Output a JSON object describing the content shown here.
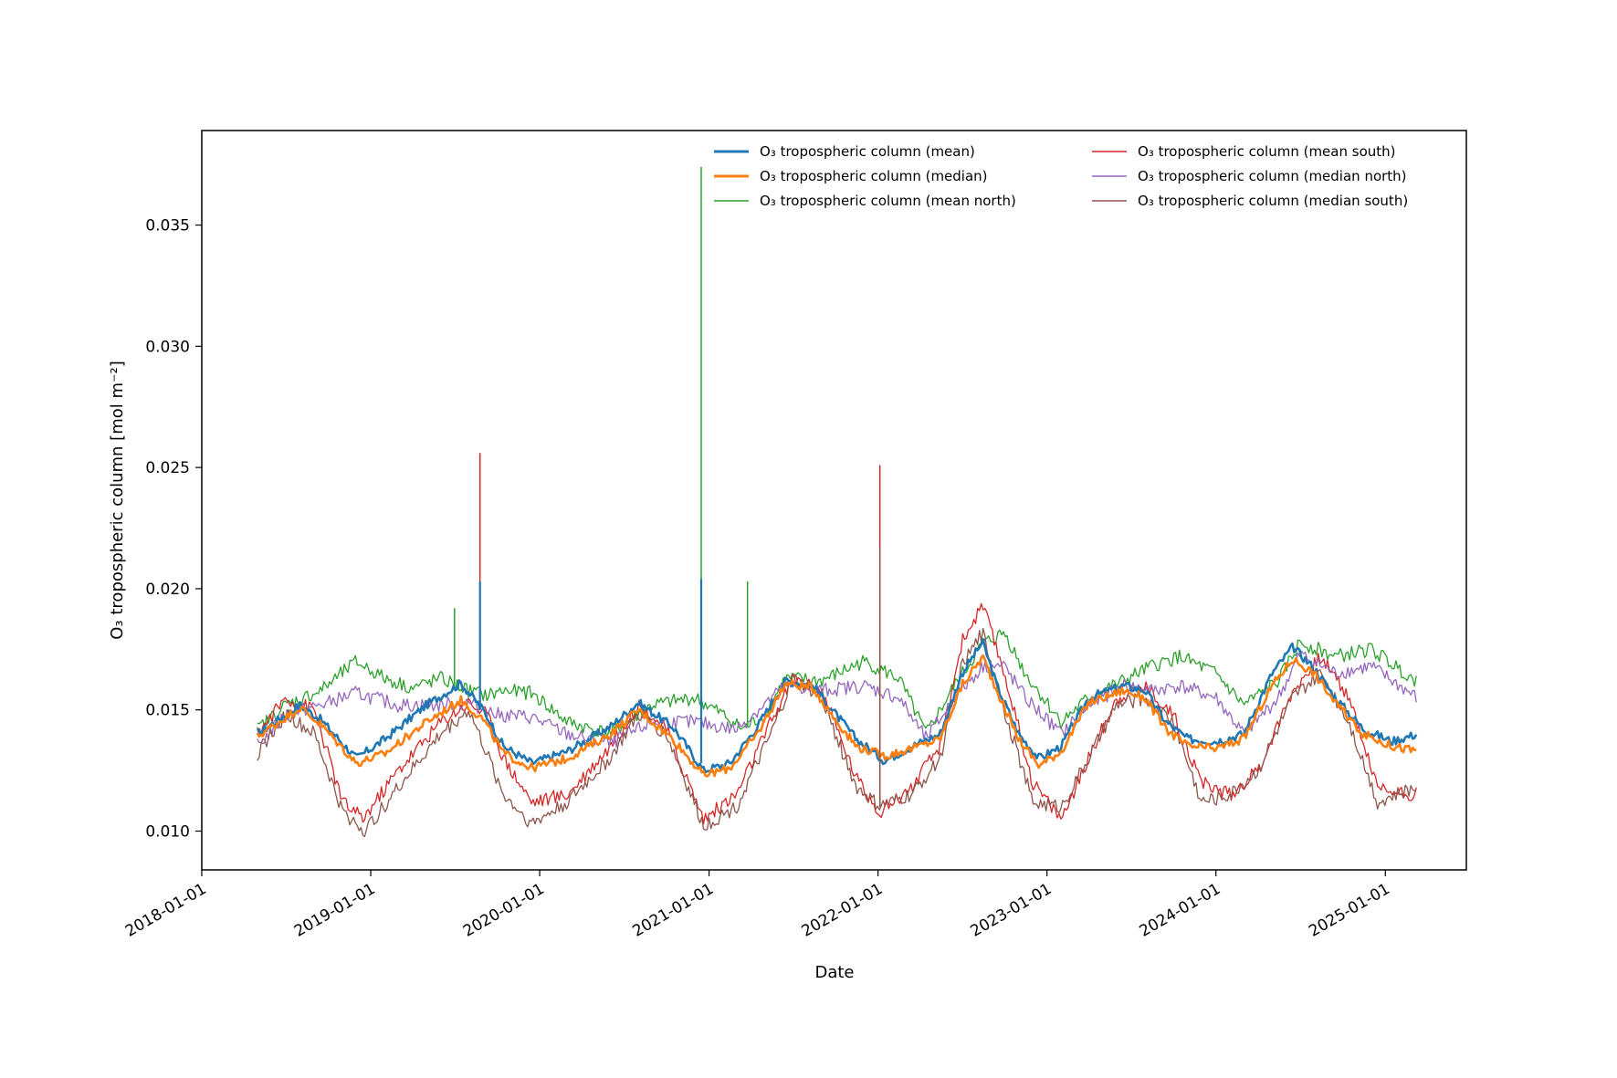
{
  "chart_data": {
    "type": "line",
    "title": "",
    "xlabel": "Date",
    "ylabel": "O₃ tropospheric column [mol m⁻²]",
    "x_range": [
      "2018-01-01",
      "2025-06-25"
    ],
    "ylim": [
      0.0084,
      0.0389
    ],
    "grid": false,
    "legend_position": "upper-right",
    "legend_columns": 2,
    "x_ticks": [
      "2018-01-01",
      "2019-01-01",
      "2020-01-01",
      "2021-01-01",
      "2022-01-01",
      "2023-01-01",
      "2024-01-01",
      "2025-01-01"
    ],
    "y_ticks": [
      0.01,
      0.015,
      0.02,
      0.025,
      0.03,
      0.035
    ],
    "y_tick_labels": [
      "0.010",
      "0.015",
      "0.020",
      "0.025",
      "0.030",
      "0.035"
    ],
    "series": [
      {
        "name": "O₃ tropospheric column (mean)",
        "color": "#1f77b4",
        "width": "thick",
        "x": [
          "2018-05-01",
          "2018-08-01",
          "2018-09-15",
          "2018-12-01",
          "2019-02-01",
          "2019-05-01",
          "2019-07-15",
          "2019-09-01",
          "2019-10-15",
          "2019-12-15",
          "2020-03-01",
          "2020-06-01",
          "2020-08-01",
          "2020-10-15",
          "2020-12-20",
          "2021-02-15",
          "2021-04-15",
          "2021-06-15",
          "2021-08-15",
          "2021-09-15",
          "2021-11-15",
          "2022-01-15",
          "2022-03-15",
          "2022-05-15",
          "2022-07-01",
          "2022-08-15",
          "2022-09-15",
          "2022-11-01",
          "2022-12-15",
          "2023-02-01",
          "2023-04-01",
          "2023-06-15",
          "2023-08-01",
          "2023-09-15",
          "2023-11-01",
          "2024-01-01",
          "2024-03-01",
          "2024-05-01",
          "2024-06-15",
          "2024-08-01",
          "2024-09-15",
          "2024-11-15",
          "2025-01-15",
          "2025-03-10"
        ],
        "y": [
          0.014,
          0.0152,
          0.0146,
          0.013,
          0.0138,
          0.0152,
          0.0161,
          0.015,
          0.0135,
          0.0128,
          0.0133,
          0.0143,
          0.0153,
          0.0143,
          0.0125,
          0.0128,
          0.0143,
          0.0162,
          0.016,
          0.0152,
          0.0138,
          0.0129,
          0.0135,
          0.014,
          0.0165,
          0.0178,
          0.016,
          0.014,
          0.013,
          0.0135,
          0.0155,
          0.016,
          0.0158,
          0.0145,
          0.0138,
          0.0137,
          0.014,
          0.0165,
          0.0176,
          0.0167,
          0.0155,
          0.0142,
          0.0137,
          0.014
        ]
      },
      {
        "name": "O₃ tropospheric column (median)",
        "color": "#ff7f0e",
        "width": "thick",
        "x": [
          "2018-05-01",
          "2018-08-01",
          "2018-09-15",
          "2018-12-01",
          "2019-02-01",
          "2019-05-01",
          "2019-07-15",
          "2019-09-01",
          "2019-10-15",
          "2019-12-15",
          "2020-03-01",
          "2020-06-01",
          "2020-08-01",
          "2020-10-15",
          "2020-12-20",
          "2021-02-15",
          "2021-04-15",
          "2021-06-15",
          "2021-08-15",
          "2021-09-15",
          "2021-11-15",
          "2022-01-15",
          "2022-03-15",
          "2022-05-15",
          "2022-07-01",
          "2022-08-15",
          "2022-09-15",
          "2022-11-01",
          "2022-12-15",
          "2023-02-01",
          "2023-04-01",
          "2023-06-15",
          "2023-08-01",
          "2023-09-15",
          "2023-11-01",
          "2024-01-01",
          "2024-03-01",
          "2024-05-01",
          "2024-06-15",
          "2024-08-01",
          "2024-09-15",
          "2024-11-15",
          "2025-01-15",
          "2025-03-10"
        ],
        "y": [
          0.0139,
          0.0151,
          0.0144,
          0.0128,
          0.0132,
          0.0145,
          0.0154,
          0.0146,
          0.0132,
          0.0126,
          0.013,
          0.014,
          0.015,
          0.0138,
          0.0123,
          0.0126,
          0.014,
          0.0161,
          0.0159,
          0.015,
          0.0135,
          0.0131,
          0.0134,
          0.0138,
          0.016,
          0.0172,
          0.0158,
          0.0138,
          0.0127,
          0.0133,
          0.0153,
          0.0158,
          0.0155,
          0.0142,
          0.0135,
          0.0134,
          0.0138,
          0.016,
          0.0171,
          0.0165,
          0.0153,
          0.014,
          0.0135,
          0.0133
        ]
      },
      {
        "name": "O₃ tropospheric column (mean north)",
        "color": "#2ca02c",
        "width": "thin",
        "x": [
          "2018-05-01",
          "2018-07-01",
          "2018-09-15",
          "2018-12-01",
          "2019-02-01",
          "2019-04-01",
          "2019-06-01",
          "2019-08-01",
          "2019-09-10",
          "2019-10-15",
          "2019-12-15",
          "2020-03-01",
          "2020-06-01",
          "2020-09-01",
          "2020-12-01",
          "2021-02-01",
          "2021-03-15",
          "2021-05-01",
          "2021-06-15",
          "2021-09-01",
          "2021-12-01",
          "2022-02-15",
          "2022-04-15",
          "2022-06-15",
          "2022-08-15",
          "2022-10-01",
          "2022-11-15",
          "2023-02-01",
          "2023-04-01",
          "2023-06-15",
          "2023-08-15",
          "2023-10-15",
          "2024-01-01",
          "2024-03-01",
          "2024-05-15",
          "2024-07-01",
          "2024-09-15",
          "2024-12-01",
          "2025-03-10"
        ],
        "y": [
          0.0142,
          0.0152,
          0.0158,
          0.017,
          0.0163,
          0.0159,
          0.0163,
          0.0158,
          0.0156,
          0.0158,
          0.0157,
          0.0145,
          0.014,
          0.0152,
          0.0155,
          0.0148,
          0.0142,
          0.0148,
          0.0163,
          0.0162,
          0.017,
          0.0163,
          0.014,
          0.016,
          0.0177,
          0.0182,
          0.0165,
          0.0145,
          0.0155,
          0.0162,
          0.0168,
          0.0172,
          0.0165,
          0.0152,
          0.0162,
          0.0178,
          0.0172,
          0.0175,
          0.0162
        ]
      },
      {
        "name": "O₃ tropospheric column (mean south)",
        "color": "#d62728",
        "width": "thin",
        "x": [
          "2018-05-01",
          "2018-07-01",
          "2018-09-01",
          "2018-11-01",
          "2018-12-15",
          "2019-03-01",
          "2019-06-01",
          "2019-08-01",
          "2019-09-10",
          "2019-10-15",
          "2019-12-15",
          "2020-03-01",
          "2020-06-01",
          "2020-08-01",
          "2020-10-01",
          "2020-12-20",
          "2021-03-01",
          "2021-05-15",
          "2021-07-01",
          "2021-09-01",
          "2021-11-15",
          "2022-01-05",
          "2022-03-15",
          "2022-05-15",
          "2022-07-01",
          "2022-08-15",
          "2022-10-01",
          "2022-12-01",
          "2023-02-01",
          "2023-04-01",
          "2023-06-01",
          "2023-08-01",
          "2023-10-01",
          "2023-12-01",
          "2024-02-01",
          "2024-04-01",
          "2024-06-15",
          "2024-08-15",
          "2024-10-15",
          "2024-12-15",
          "2025-03-10"
        ],
        "y": [
          0.014,
          0.0155,
          0.015,
          0.0112,
          0.0105,
          0.0125,
          0.0145,
          0.0153,
          0.0148,
          0.013,
          0.0112,
          0.0115,
          0.0135,
          0.0152,
          0.0142,
          0.0105,
          0.0115,
          0.0145,
          0.0163,
          0.0158,
          0.0122,
          0.0108,
          0.0118,
          0.0135,
          0.0178,
          0.0193,
          0.0165,
          0.012,
          0.0105,
          0.013,
          0.0155,
          0.016,
          0.0148,
          0.012,
          0.0115,
          0.0125,
          0.0158,
          0.0172,
          0.0155,
          0.0118,
          0.0115
        ]
      },
      {
        "name": "O₃ tropospheric column (median north)",
        "color": "#9467bd",
        "width": "thin",
        "x": [
          "2018-05-01",
          "2018-07-01",
          "2018-09-15",
          "2018-12-01",
          "2019-03-01",
          "2019-06-01",
          "2019-08-01",
          "2019-10-01",
          "2019-12-15",
          "2020-03-01",
          "2020-06-01",
          "2020-09-01",
          "2020-12-01",
          "2021-03-01",
          "2021-06-15",
          "2021-09-01",
          "2021-12-01",
          "2022-02-15",
          "2022-04-15",
          "2022-06-15",
          "2022-08-15",
          "2022-10-01",
          "2022-11-15",
          "2023-02-01",
          "2023-04-01",
          "2023-06-15",
          "2023-08-15",
          "2023-10-15",
          "2024-01-01",
          "2024-03-01",
          "2024-05-15",
          "2024-07-01",
          "2024-09-15",
          "2024-12-01",
          "2025-03-10"
        ],
        "y": [
          0.0135,
          0.0148,
          0.0152,
          0.0157,
          0.0152,
          0.0152,
          0.0153,
          0.0148,
          0.0147,
          0.014,
          0.0136,
          0.0145,
          0.0145,
          0.0142,
          0.016,
          0.0158,
          0.016,
          0.0155,
          0.0138,
          0.0155,
          0.0168,
          0.0168,
          0.0155,
          0.014,
          0.0152,
          0.016,
          0.0158,
          0.016,
          0.0155,
          0.014,
          0.0155,
          0.0173,
          0.0165,
          0.0168,
          0.0155
        ]
      },
      {
        "name": "O₃ tropospheric column (median south)",
        "color": "#8c564b",
        "width": "thin",
        "x": [
          "2018-05-01",
          "2018-07-01",
          "2018-09-01",
          "2018-11-01",
          "2018-12-20",
          "2019-03-01",
          "2019-06-01",
          "2019-08-01",
          "2019-10-15",
          "2019-12-15",
          "2020-03-01",
          "2020-06-01",
          "2020-08-01",
          "2020-10-01",
          "2020-12-20",
          "2021-03-01",
          "2021-05-15",
          "2021-07-01",
          "2021-09-01",
          "2021-11-15",
          "2022-01-05",
          "2022-03-15",
          "2022-05-15",
          "2022-07-01",
          "2022-08-15",
          "2022-10-01",
          "2022-12-01",
          "2023-02-01",
          "2023-04-01",
          "2023-06-01",
          "2023-08-01",
          "2023-10-01",
          "2023-12-01",
          "2024-02-01",
          "2024-04-01",
          "2024-06-15",
          "2024-08-15",
          "2024-10-15",
          "2024-12-15",
          "2025-03-10"
        ],
        "y": [
          0.0132,
          0.0148,
          0.014,
          0.0108,
          0.01,
          0.0118,
          0.014,
          0.015,
          0.0115,
          0.0103,
          0.0112,
          0.013,
          0.0148,
          0.014,
          0.0102,
          0.011,
          0.014,
          0.0163,
          0.0155,
          0.0118,
          0.011,
          0.0115,
          0.013,
          0.0168,
          0.0182,
          0.015,
          0.0112,
          0.011,
          0.013,
          0.0152,
          0.0155,
          0.0145,
          0.0112,
          0.0115,
          0.0125,
          0.0155,
          0.0165,
          0.0145,
          0.0112,
          0.0118
        ]
      }
    ],
    "spikes": [
      {
        "series": "O₃ tropospheric column (mean north)",
        "x": "2019-07-01",
        "base": 0.016,
        "peak": 0.0192
      },
      {
        "series": "O₃ tropospheric column (mean south)",
        "x": "2019-08-25",
        "base": 0.015,
        "peak": 0.0256
      },
      {
        "series": "O₃ tropospheric column (mean)",
        "x": "2019-08-25",
        "base": 0.015,
        "peak": 0.0203
      },
      {
        "series": "O₃ tropospheric column (mean north)",
        "x": "2020-12-15",
        "base": 0.015,
        "peak": 0.0374
      },
      {
        "series": "O₃ tropospheric column (mean)",
        "x": "2020-12-15",
        "base": 0.0128,
        "peak": 0.0204
      },
      {
        "series": "O₃ tropospheric column (mean north)",
        "x": "2021-03-25",
        "base": 0.0143,
        "peak": 0.0203
      },
      {
        "series": "O₃ tropospheric column (mean south)",
        "x": "2022-01-05",
        "base": 0.011,
        "peak": 0.0251
      },
      {
        "series": "O₃ tropospheric column (median south)",
        "x": "2022-01-05",
        "base": 0.011,
        "peak": 0.0217
      }
    ]
  }
}
